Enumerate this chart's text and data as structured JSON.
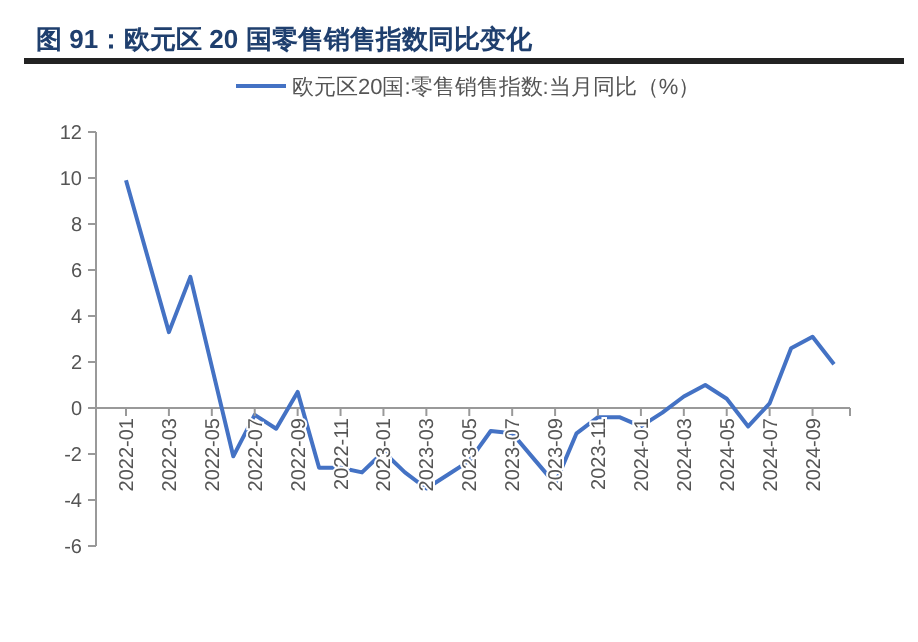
{
  "chart_data": {
    "type": "line",
    "title": "图 91：欧元区 20 国零售销售指数同比变化",
    "categories": [
      "2022-01",
      null,
      "2022-03",
      null,
      "2022-05",
      null,
      "2022-07",
      null,
      "2022-09",
      null,
      "2022-11",
      null,
      "2023-01",
      null,
      "2023-03",
      null,
      "2023-05",
      null,
      "2023-07",
      null,
      "2023-09",
      null,
      "2023-11",
      null,
      "2024-01",
      null,
      "2024-03",
      null,
      "2024-05",
      null,
      "2024-07",
      null,
      "2024-09",
      null
    ],
    "series": [
      {
        "name": "欧元区20国:零售销售指数:当月同比（%）",
        "color": "#4472c4",
        "values": [
          9.9,
          6.6,
          3.3,
          5.7,
          1.8,
          -2.1,
          -0.3,
          -0.9,
          0.7,
          -2.6,
          -2.6,
          -2.8,
          -1.9,
          -2.8,
          -3.5,
          -2.9,
          -2.3,
          -1.0,
          -1.1,
          -2.2,
          -3.3,
          -1.1,
          -0.4,
          -0.4,
          -0.8,
          -0.2,
          0.5,
          1.0,
          0.4,
          -0.8,
          0.2,
          2.6,
          3.1,
          1.9
        ]
      }
    ],
    "ylim": [
      -6,
      12
    ],
    "yticks": [
      -6,
      -4,
      -2,
      0,
      2,
      4,
      6,
      8,
      10,
      12
    ],
    "grid": false,
    "legend": "top",
    "marker": "none",
    "line_style": "solid"
  }
}
